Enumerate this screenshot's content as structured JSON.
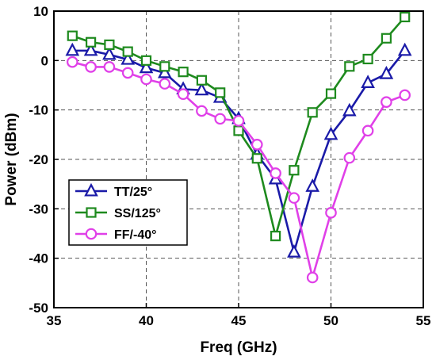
{
  "chart_data": {
    "type": "line",
    "xlabel": "Freq (GHz)",
    "ylabel": "Power (dBm)",
    "xlim": [
      35,
      55
    ],
    "ylim": [
      -50,
      10
    ],
    "xticks": [
      35,
      40,
      45,
      50,
      55
    ],
    "yticks": [
      -50,
      -40,
      -30,
      -20,
      -10,
      0,
      10
    ],
    "grid": true,
    "legend_position": "lower-left",
    "x": [
      36,
      37,
      38,
      39,
      40,
      41,
      42,
      43,
      44,
      45,
      46,
      47,
      48,
      49,
      50,
      51,
      52,
      53,
      54
    ],
    "series": [
      {
        "name": "TT/25°",
        "color": "#1a1aa8",
        "marker": "triangle",
        "values": [
          2.0,
          2.0,
          1.2,
          0.2,
          -1.5,
          -2.5,
          -5.8,
          -6.0,
          -7.5,
          -11.8,
          -19.0,
          -24.0,
          -38.8,
          -25.5,
          -15.0,
          -10.2,
          -4.5,
          -2.7,
          2.0
        ]
      },
      {
        "name": "SS/125°",
        "color": "#1e8a1e",
        "marker": "square",
        "values": [
          5.0,
          3.7,
          3.2,
          1.8,
          0.0,
          -1.2,
          -2.3,
          -4.0,
          -6.5,
          -14.2,
          -19.8,
          -35.5,
          -22.2,
          -10.5,
          -6.7,
          -1.2,
          0.3,
          4.5,
          8.8
        ]
      },
      {
        "name": "FF/-40°",
        "color": "#e040e8",
        "marker": "circle",
        "values": [
          -0.3,
          -1.3,
          -1.3,
          -2.5,
          -3.8,
          -4.7,
          -6.8,
          -10.2,
          -11.8,
          -12.2,
          -17.0,
          -22.8,
          -27.8,
          -43.9,
          -30.8,
          -19.7,
          -14.2,
          -8.4,
          -7.0
        ]
      }
    ]
  }
}
